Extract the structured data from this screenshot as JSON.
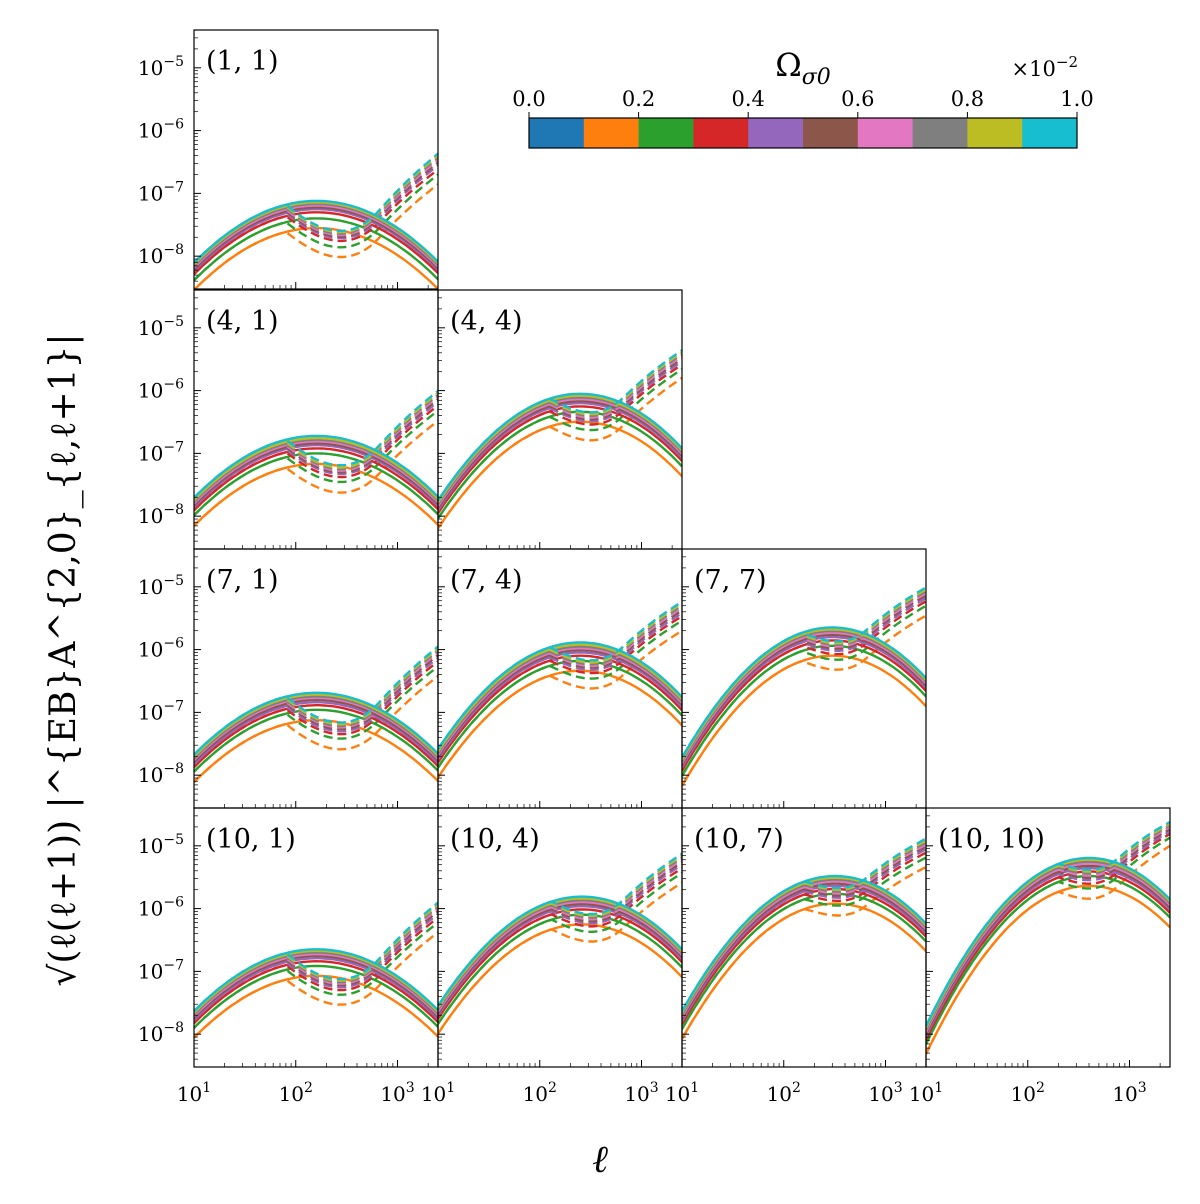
{
  "chart_data": {
    "type": "line",
    "layout": "lower-triangular grid",
    "xlabel": "ℓ",
    "ylabel": "√(ℓ(ℓ+1)) |^{EB}A^{2,0}_{ℓ,ℓ+1}|",
    "xscale": "log",
    "yscale": "log",
    "xlim": [
      10,
      2500
    ],
    "ylim": [
      3e-09,
      4e-05
    ],
    "xticks": [
      10,
      100,
      1000
    ],
    "xtick_labels": [
      [
        "10",
        "1"
      ],
      [
        "10",
        "2"
      ],
      [
        "10",
        "3"
      ]
    ],
    "yticks": [
      1e-08,
      1e-07,
      1e-06,
      1e-05
    ],
    "ytick_labels": [
      [
        "10",
        "−8"
      ],
      [
        "10",
        "−7"
      ],
      [
        "10",
        "−6"
      ],
      [
        "10",
        "−5"
      ]
    ],
    "line_styles": {
      "solid": "solid",
      "dashed": "dashed"
    },
    "colorbar": {
      "label": "Ω",
      "label_sub": "σ0",
      "multiplier": [
        "×10",
        "−2"
      ],
      "range": [
        0.0,
        1.0
      ],
      "ticks": [
        "0.0",
        "0.2",
        "0.4",
        "0.6",
        "0.8",
        "1.0"
      ],
      "colors": [
        "#1f77b4",
        "#ff7f0e",
        "#2ca02c",
        "#d62728",
        "#9467bd",
        "#8c564b",
        "#e377c2",
        "#7f7f7f",
        "#bcbd22",
        "#17becf"
      ]
    },
    "series_colors": [
      "#ff7f0e",
      "#2ca02c",
      "#d62728",
      "#9467bd",
      "#8c564b",
      "#e377c2",
      "#7f7f7f",
      "#bcbd22",
      "#17becf"
    ],
    "series_omega": [
      0.1,
      0.2,
      0.3,
      0.4,
      0.5,
      0.6,
      0.7,
      0.8,
      0.9
    ],
    "panels": [
      {
        "label": "(1, 1)",
        "row": 0,
        "col": 0,
        "peak_ell": 160,
        "solid_peak": [
          2.8e-08,
          4e-08,
          5e-08,
          5.6e-08,
          6e-08,
          6.4e-08,
          6.8e-08,
          7.2e-08,
          7.6e-08
        ],
        "solid_width": 1.3,
        "dashed_end": [
          1.4e-07,
          2e-07,
          2.4e-07,
          2.8e-07,
          3.1e-07,
          3.4e-07,
          3.7e-07,
          4e-07,
          4.3e-07
        ],
        "dashed_pivot": 600
      },
      {
        "label": "(4, 1)",
        "row": 1,
        "col": 0,
        "peak_ell": 160,
        "solid_peak": [
          6.8e-08,
          1e-07,
          1.2e-07,
          1.35e-07,
          1.45e-07,
          1.55e-07,
          1.65e-07,
          1.75e-07,
          1.9e-07
        ],
        "solid_width": 1.3,
        "dashed_end": [
          3.3e-07,
          4.8e-07,
          5.8e-07,
          6.6e-07,
          7.3e-07,
          8e-07,
          8.6e-07,
          9.2e-07,
          9.9e-07
        ],
        "dashed_pivot": 600
      },
      {
        "label": "(4, 4)",
        "row": 1,
        "col": 1,
        "peak_ell": 250,
        "solid_peak": [
          3.2e-07,
          4.6e-07,
          5.6e-07,
          6.3e-07,
          6.8e-07,
          7.3e-07,
          7.8e-07,
          8.3e-07,
          8.9e-07
        ],
        "solid_width": 1.15,
        "dashed_end": [
          1.6e-06,
          2.2e-06,
          2.6e-06,
          2.9e-06,
          3.2e-06,
          3.5e-06,
          3.8e-06,
          4.1e-06,
          4.4e-06
        ],
        "dashed_pivot": 600
      },
      {
        "label": "(7, 1)",
        "row": 2,
        "col": 0,
        "peak_ell": 160,
        "solid_peak": [
          7.5e-08,
          1.1e-07,
          1.3e-07,
          1.45e-07,
          1.58e-07,
          1.7e-07,
          1.8e-07,
          1.92e-07,
          2.05e-07
        ],
        "solid_width": 1.3,
        "dashed_end": [
          3.8e-07,
          5.4e-07,
          6.5e-07,
          7.4e-07,
          8.2e-07,
          9e-07,
          9.7e-07,
          1.04e-06,
          1.12e-06
        ],
        "dashed_pivot": 600
      },
      {
        "label": "(7, 4)",
        "row": 2,
        "col": 1,
        "peak_ell": 250,
        "solid_peak": [
          4.6e-07,
          6.6e-07,
          8e-07,
          9e-07,
          9.8e-07,
          1.05e-06,
          1.12e-06,
          1.2e-06,
          1.3e-06
        ],
        "solid_width": 1.15,
        "dashed_end": [
          2e-06,
          2.9e-06,
          3.4e-06,
          3.8e-06,
          4.2e-06,
          4.6e-06,
          5e-06,
          5.4e-06,
          5.8e-06
        ],
        "dashed_pivot": 600
      },
      {
        "label": "(7, 7)",
        "row": 2,
        "col": 2,
        "peak_ell": 300,
        "solid_peak": [
          8e-07,
          1.15e-06,
          1.4e-06,
          1.58e-06,
          1.72e-06,
          1.85e-06,
          1.98e-06,
          2.1e-06,
          2.25e-06
        ],
        "solid_width": 1.1,
        "dashed_end": [
          3.5e-06,
          5e-06,
          5.9e-06,
          6.6e-06,
          7.3e-06,
          7.9e-06,
          8.5e-06,
          9.1e-06,
          9.8e-06
        ],
        "dashed_pivot": 600
      },
      {
        "label": "(10, 1)",
        "row": 3,
        "col": 0,
        "peak_ell": 160,
        "solid_peak": [
          8.5e-08,
          1.22e-07,
          1.45e-07,
          1.62e-07,
          1.76e-07,
          1.88e-07,
          2e-07,
          2.12e-07,
          2.25e-07
        ],
        "solid_width": 1.3,
        "dashed_end": [
          4.2e-07,
          6e-07,
          7.2e-07,
          8.2e-07,
          9.1e-07,
          1e-06,
          1.08e-06,
          1.16e-06,
          1.25e-06
        ],
        "dashed_pivot": 600
      },
      {
        "label": "(10, 4)",
        "row": 3,
        "col": 1,
        "peak_ell": 260,
        "solid_peak": [
          5.6e-07,
          8e-07,
          9.7e-07,
          1.09e-06,
          1.18e-06,
          1.27e-06,
          1.36e-06,
          1.45e-06,
          1.55e-06
        ],
        "solid_width": 1.15,
        "dashed_end": [
          2.6e-06,
          3.7e-06,
          4.4e-06,
          5e-06,
          5.5e-06,
          6e-06,
          6.5e-06,
          7e-06,
          7.5e-06
        ],
        "dashed_pivot": 600
      },
      {
        "label": "(10, 7)",
        "row": 3,
        "col": 2,
        "peak_ell": 320,
        "solid_peak": [
          1.2e-06,
          1.72e-06,
          2.05e-06,
          2.3e-06,
          2.5e-06,
          2.7e-06,
          2.9e-06,
          3.1e-06,
          3.3e-06
        ],
        "solid_width": 1.1,
        "dashed_end": [
          4.6e-06,
          6.5e-06,
          7.8e-06,
          8.8e-06,
          9.7e-06,
          1.05e-05,
          1.13e-05,
          1.21e-05,
          1.3e-05
        ],
        "dashed_pivot": 600
      },
      {
        "label": "(10, 10)",
        "row": 3,
        "col": 3,
        "peak_ell": 400,
        "solid_peak": [
          2.3e-06,
          3.3e-06,
          3.9e-06,
          4.4e-06,
          4.8e-06,
          5.2e-06,
          5.6e-06,
          6e-06,
          6.4e-06
        ],
        "solid_width": 1.05,
        "dashed_end": [
          1e-05,
          1.35e-05,
          1.55e-05,
          1.7e-05,
          1.85e-05,
          2e-05,
          2.12e-05,
          2.25e-05,
          2.4e-05
        ],
        "dashed_pivot": 700
      }
    ]
  }
}
